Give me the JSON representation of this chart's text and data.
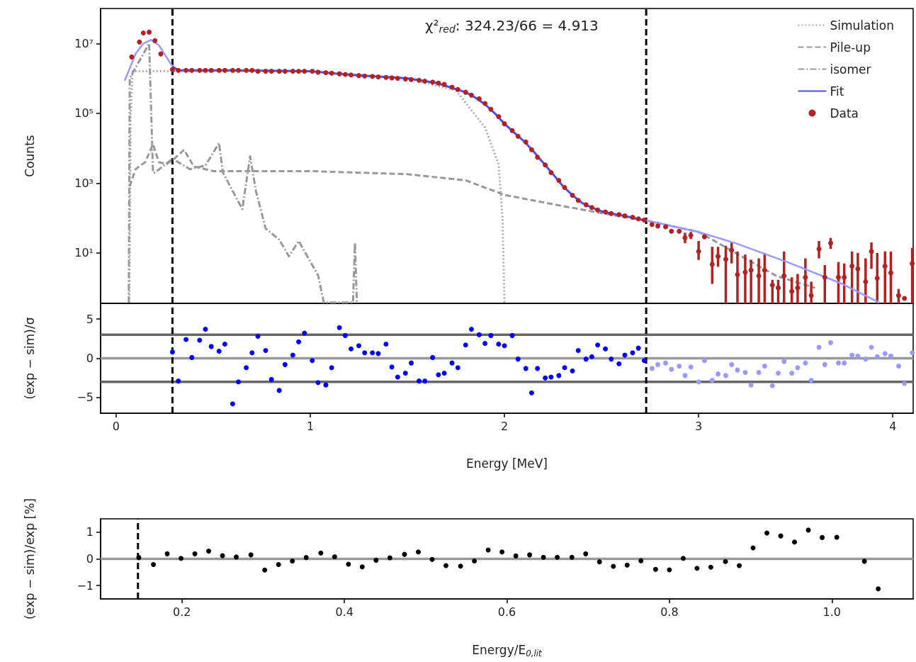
{
  "chart_data": [
    {
      "type": "line",
      "ylabel": "Counts",
      "xlim": [
        -0.08,
        4.105
      ],
      "xticks": [
        0,
        1,
        2,
        3,
        4
      ],
      "ylim": [
        0.36,
        100000000
      ],
      "yticks": [
        {
          "value": 10,
          "label": "10¹"
        },
        {
          "value": 1000,
          "label": "10³"
        },
        {
          "value": 100000,
          "label": "10⁵"
        },
        {
          "value": 10000000,
          "label": "10⁷"
        }
      ],
      "log": "y",
      "tick_labels": "y",
      "grid": false,
      "legend": "top right",
      "annotations": [
        "χ²$_{red}$: 324.23/66 = 4.913"
      ],
      "ref_lines": [
        {
          "axis": "x",
          "value": 0.29,
          "color": "#000000",
          "line_style": "dashed"
        },
        {
          "axis": "x",
          "value": 2.73,
          "color": "#000000",
          "line_style": "dashed"
        }
      ],
      "series": [
        {
          "name": "Simulation",
          "color": "#aaaaaa",
          "line_style": "dotted",
          "marker": "none",
          "x": [
            0.068,
            0.075,
            0.085,
            0.29,
            1.0,
            1.5,
            1.75,
            1.8,
            1.9,
            1.97,
            1.99,
            2.0
          ],
          "values": [
            0.38,
            100000,
            1600000,
            1600000,
            1600000,
            1000000,
            450000,
            200000,
            39000,
            3400,
            100,
            0.38
          ]
        },
        {
          "name": "Pile-up",
          "color": "#999999",
          "line_style": "dashed",
          "marker": "none",
          "x": [
            0.07,
            0.1,
            0.15,
            0.19,
            0.22,
            0.26,
            0.3,
            0.35,
            0.4,
            0.5,
            1.0,
            1.5,
            1.8,
            2.0,
            2.3,
            2.6,
            2.73,
            3.0,
            3.19,
            3.4,
            3.6
          ],
          "values": [
            800,
            2500,
            4000,
            13000,
            4000,
            3500,
            5000,
            9000,
            3000,
            2200,
            2200,
            1800,
            1200,
            460,
            220,
            110,
            85,
            40,
            10,
            2.2,
            1
          ]
        },
        {
          "name": "isomer",
          "color": "#999999",
          "line_style": "dashdot",
          "marker": "none",
          "x": [
            0.065,
            0.07,
            0.17,
            0.19,
            0.2,
            0.29,
            0.38,
            0.46,
            0.53,
            0.55,
            0.65,
            0.69,
            0.72,
            0.77,
            0.84,
            0.89,
            0.94,
            1.04,
            1.07,
            1.22,
            1.23,
            1.24
          ],
          "values": [
            0.38,
            1000000,
            10000000,
            2000,
            2000,
            5000,
            2500,
            3200,
            14000,
            2000,
            180,
            5900,
            600,
            50,
            24,
            8,
            22,
            2.3,
            0.38,
            0.38,
            20,
            0.38
          ]
        },
        {
          "color": "#9999ff",
          "line_style": "solid",
          "marker": "none",
          "x": [
            0.044,
            0.1,
            0.14,
            0.18,
            0.22,
            0.26,
            0.29
          ],
          "values": [
            850000,
            5000000,
            10000000,
            12600000,
            8900000,
            4000000,
            2200000
          ]
        },
        {
          "name": "Fit",
          "color": "#4b4bff",
          "line_style": "solid",
          "marker": "none",
          "x": [
            0.29,
            0.32,
            0.6,
            1.0,
            1.2,
            1.5,
            1.65,
            1.8,
            1.85,
            1.9,
            1.95,
            2.0,
            2.05,
            2.1,
            2.15,
            2.2,
            2.25,
            2.3,
            2.35,
            2.4,
            2.45,
            2.5,
            2.55,
            2.6,
            2.65,
            2.7,
            2.73
          ],
          "values": [
            2200000,
            1700000,
            1700000,
            1600000,
            1260000,
            1000000,
            740000,
            400000,
            280000,
            180000,
            100000,
            50000,
            28000,
            16000,
            8000,
            3800,
            1800,
            830,
            450,
            270,
            200,
            155,
            135,
            120,
            105,
            91,
            85
          ]
        },
        {
          "color": "#9999ff",
          "line_style": "solid",
          "marker": "none",
          "x": [
            2.73,
            3.0,
            3.19,
            3.46,
            3.74,
            3.93
          ],
          "values": [
            85,
            40,
            19,
            5.4,
            1.3,
            0.38
          ]
        },
        {
          "type": "scatter",
          "name": "Data",
          "color": "#b22222",
          "marker": "circle",
          "x": [
            0.08,
            0.12,
            0.14,
            0.17,
            0.2,
            0.23,
            0.29,
            0.32,
            0.36,
            0.39,
            0.43,
            0.46,
            0.49,
            0.53,
            0.56,
            0.6,
            0.63,
            0.67,
            0.7,
            0.73,
            0.77,
            0.8,
            0.84,
            0.87,
            0.91,
            0.94,
            0.97,
            1.01,
            1.04,
            1.08,
            1.11,
            1.15,
            1.18,
            1.21,
            1.25,
            1.28,
            1.32,
            1.35,
            1.39,
            1.42,
            1.45,
            1.49,
            1.52,
            1.56,
            1.59,
            1.63,
            1.66,
            1.69,
            1.73,
            1.76,
            1.8,
            1.83,
            1.87,
            1.9,
            1.93,
            1.97,
            2.0,
            2.04,
            2.07,
            2.11,
            2.14,
            2.17,
            2.21,
            2.24,
            2.28,
            2.31,
            2.35,
            2.38,
            2.42,
            2.45,
            2.48,
            2.52,
            2.55,
            2.59,
            2.62,
            2.66,
            2.69,
            2.72,
            2.76,
            2.79,
            2.83,
            2.86,
            2.9,
            2.93,
            2.96,
            3.0,
            3.03,
            3.07,
            3.1,
            3.14,
            3.17,
            3.2,
            3.24,
            3.27,
            3.31,
            3.34,
            3.38,
            3.41,
            3.44,
            3.48,
            3.51,
            3.55,
            3.58,
            3.62,
            3.65,
            3.68,
            3.72,
            3.75,
            3.79,
            3.82,
            3.86,
            3.89,
            3.92,
            3.96,
            3.99,
            4.03,
            4.06,
            4.1
          ],
          "values": [
            4100000,
            11000000,
            20000000,
            21000000,
            12000000,
            5000000,
            1800000,
            1700000,
            1700000,
            1700000,
            1700000,
            1700000,
            1700000,
            1700000,
            1700000,
            1700000,
            1700000,
            1700000,
            1700000,
            1600000,
            1600000,
            1600000,
            1600000,
            1600000,
            1600000,
            1600000,
            1600000,
            1600000,
            1500000,
            1450000,
            1400000,
            1350000,
            1300000,
            1250000,
            1200000,
            1170000,
            1140000,
            1100000,
            1060000,
            1030000,
            1000000,
            960000,
            920000,
            880000,
            830000,
            780000,
            730000,
            670000,
            560000,
            480000,
            400000,
            330000,
            260000,
            190000,
            130000,
            80000,
            50000,
            32000,
            22000,
            15000,
            9000,
            5500,
            3300,
            2000,
            1200,
            750,
            450,
            320,
            240,
            200,
            170,
            150,
            135,
            125,
            115,
            105,
            95,
            87,
            65,
            59,
            56,
            42,
            42,
            27,
            32,
            11,
            29,
            4.7,
            8,
            6.6,
            12,
            2.4,
            2.8,
            3.2,
            2.2,
            3.2,
            1.2,
            1.0,
            2.2,
            0.8,
            1.0,
            2.0,
            0.6,
            13,
            2.0,
            19,
            2.0,
            2.0,
            4.2,
            3.5,
            1.5,
            11,
            1.9,
            4.2,
            2.7,
            0.6,
            0.5,
            5
          ],
          "errors": [
            null,
            null,
            null,
            null,
            null,
            null,
            null,
            null,
            null,
            null,
            null,
            null,
            null,
            null,
            null,
            null,
            null,
            null,
            null,
            null,
            null,
            null,
            null,
            null,
            null,
            null,
            null,
            null,
            null,
            null,
            null,
            null,
            null,
            null,
            null,
            null,
            null,
            null,
            null,
            null,
            null,
            null,
            null,
            null,
            null,
            null,
            null,
            null,
            null,
            null,
            null,
            null,
            null,
            null,
            null,
            null,
            null,
            null,
            null,
            null,
            null,
            null,
            null,
            null,
            null,
            null,
            null,
            null,
            null,
            null,
            null,
            null,
            null,
            null,
            null,
            null,
            null,
            null,
            null,
            null,
            null,
            null,
            null,
            [
              19,
              38
            ],
            [
              25,
              40
            ],
            [
              6.3,
              22
            ],
            [
              25,
              35
            ],
            [
              1.3,
              15
            ],
            [
              4,
              15
            ],
            [
              0.36,
              16
            ],
            [
              5,
              21
            ],
            [
              0.36,
              11
            ],
            [
              0.36,
              9
            ],
            [
              0.36,
              6.4
            ],
            [
              0.36,
              7
            ],
            [
              0.36,
              10
            ],
            [
              0.36,
              1.7
            ],
            [
              0.36,
              1.7
            ],
            [
              0.36,
              11
            ],
            [
              0.36,
              2
            ],
            [
              0.36,
              2.5
            ],
            [
              0.36,
              7
            ],
            [
              0.36,
              1.5
            ],
            [
              7,
              22
            ],
            [
              0.36,
              4.5
            ],
            [
              13,
              27
            ],
            [
              0.36,
              5.5
            ],
            [
              0.36,
              5
            ],
            [
              0.36,
              11
            ],
            [
              0.36,
              10
            ],
            [
              0.36,
              7
            ],
            [
              3.5,
              20
            ],
            [
              0.36,
              10
            ],
            [
              0.36,
              11
            ],
            [
              0.36,
              11
            ],
            [
              0.36,
              0.93
            ],
            null,
            [
              0.36,
              14
            ]
          ]
        }
      ]
    },
    {
      "type": "scatter",
      "xlabel": "Energy [MeV]",
      "ylabel": "(exp − sim)/σ",
      "xlim": [
        -0.08,
        4.105
      ],
      "xticks": [
        0,
        1,
        2,
        3,
        4
      ],
      "ylim": [
        -7,
        7
      ],
      "yticks": [
        {
          "value": -5,
          "label": "−5"
        },
        0,
        5
      ],
      "grid": false,
      "legend": false,
      "marker": "circle",
      "ref_lines": [
        {
          "axis": "y",
          "value": 3,
          "color": "#666666",
          "line_style": "solid"
        },
        {
          "axis": "y",
          "value": 0,
          "color": "#999999",
          "line_style": "solid"
        },
        {
          "axis": "y",
          "value": -3,
          "color": "#666666",
          "line_style": "solid"
        },
        {
          "axis": "x",
          "value": 0.29,
          "color": "#000000",
          "line_style": "dashed"
        },
        {
          "axis": "x",
          "value": 2.73,
          "color": "#000000",
          "line_style": "dashed"
        }
      ],
      "series": [
        {
          "color": "#0000ff",
          "x": [
            0.29,
            0.32,
            0.36,
            0.39,
            0.43,
            0.46,
            0.49,
            0.53,
            0.56,
            0.6,
            0.63,
            0.67,
            0.7,
            0.73,
            0.77,
            0.8,
            0.84,
            0.87,
            0.91,
            0.94,
            0.97,
            1.01,
            1.04,
            1.08,
            1.11,
            1.15,
            1.18,
            1.21,
            1.25,
            1.28,
            1.32,
            1.35,
            1.39,
            1.42,
            1.45,
            1.49,
            1.52,
            1.56,
            1.59,
            1.63,
            1.66,
            1.69,
            1.73,
            1.76,
            1.8,
            1.83,
            1.87,
            1.9,
            1.93,
            1.97,
            2.0,
            2.04,
            2.07,
            2.11,
            2.14,
            2.17,
            2.21,
            2.24,
            2.28,
            2.31,
            2.35,
            2.38,
            2.42,
            2.45,
            2.48,
            2.52,
            2.55,
            2.59,
            2.62,
            2.66,
            2.69,
            2.72
          ],
          "values": [
            0.8,
            -2.9,
            2.4,
            0.1,
            2.3,
            3.7,
            1.5,
            0.9,
            1.8,
            -5.8,
            -3.0,
            -1.2,
            0.7,
            2.8,
            1.0,
            -2.7,
            -4.1,
            -0.8,
            0.4,
            2.1,
            3.2,
            -0.3,
            -3.1,
            -3.4,
            -1.2,
            3.9,
            2.9,
            1.2,
            1.6,
            0.7,
            0.7,
            0.6,
            1.8,
            -1.1,
            -2.4,
            -1.9,
            -0.6,
            -2.9,
            -2.9,
            0.1,
            -2.1,
            -1.9,
            -0.6,
            -1.2,
            1.7,
            3.7,
            3.0,
            1.9,
            2.9,
            1.8,
            1.6,
            2.9,
            -0.1,
            -1.3,
            -4.4,
            -1.3,
            -2.5,
            -2.4,
            -2.2,
            -1.2,
            -1.6,
            1.0,
            -0.1,
            0.2,
            1.7,
            1.2,
            -0.1,
            -0.7,
            0.4,
            0.7,
            1.3,
            -0.3
          ]
        },
        {
          "color": "#9999ff",
          "x": [
            2.76,
            2.79,
            2.83,
            2.86,
            2.9,
            2.93,
            2.96,
            3.0,
            3.03,
            3.07,
            3.1,
            3.14,
            3.17,
            3.2,
            3.24,
            3.27,
            3.31,
            3.34,
            3.38,
            3.41,
            3.44,
            3.48,
            3.51,
            3.55,
            3.58,
            3.62,
            3.65,
            3.68,
            3.72,
            3.75,
            3.79,
            3.82,
            3.86,
            3.89,
            3.92,
            3.96,
            3.99,
            4.03,
            4.06,
            4.1
          ],
          "values": [
            -1.3,
            -0.8,
            -0.6,
            -1.4,
            -1.0,
            -2.2,
            -1.1,
            -3.0,
            -0.3,
            -2.8,
            -2.0,
            -2.2,
            -0.8,
            -1.5,
            -1.8,
            -3.4,
            -1.8,
            -1.0,
            -3.5,
            -1.9,
            -0.4,
            -1.9,
            -1.2,
            -0.6,
            -2.8,
            1.4,
            -0.8,
            2.0,
            -0.6,
            -0.6,
            0.4,
            0.3,
            -0.1,
            1.4,
            0.2,
            0.6,
            0.3,
            -1.0,
            -3.2,
            0.7
          ]
        }
      ]
    },
    {
      "type": "scatter",
      "xlabel": "Energy/E$_{0,lit}$",
      "ylabel": "(exp − sim)/exp [%]",
      "xlim": [
        0.1,
        1.1
      ],
      "xticks": [
        0.2,
        0.4,
        0.6,
        0.8,
        {
          "value": 1,
          "label": "1.0"
        }
      ],
      "ylim": [
        -1.5,
        1.5
      ],
      "yticks": [
        {
          "value": -1,
          "label": "−1"
        },
        0,
        1
      ],
      "grid": false,
      "legend": false,
      "marker": "circle",
      "ref_lines": [
        {
          "axis": "y",
          "value": 0,
          "color": "#999999",
          "line_style": "solid"
        },
        {
          "axis": "x",
          "value": 0.146,
          "color": "#000000",
          "line_style": "dashed"
        }
      ],
      "series": [
        {
          "color": "#000000",
          "x": [
            0.147,
            0.165,
            0.182,
            0.199,
            0.216,
            0.233,
            0.25,
            0.267,
            0.285,
            0.302,
            0.319,
            0.336,
            0.353,
            0.371,
            0.388,
            0.405,
            0.422,
            0.439,
            0.456,
            0.474,
            0.491,
            0.508,
            0.525,
            0.543,
            0.56,
            0.577,
            0.594,
            0.611,
            0.628,
            0.645,
            0.662,
            0.68,
            0.697,
            0.714,
            0.731,
            0.748,
            0.765,
            0.783,
            0.8,
            0.817,
            0.834,
            0.851,
            0.869,
            0.886,
            0.903,
            0.92,
            0.937,
            0.954,
            0.971,
            0.988,
            1.006,
            1.04,
            1.057
          ],
          "values": [
            0.05,
            -0.21,
            0.19,
            0.02,
            0.19,
            0.29,
            0.12,
            0.07,
            0.15,
            -0.42,
            -0.21,
            -0.08,
            0.05,
            0.22,
            0.08,
            -0.2,
            -0.3,
            -0.05,
            0.04,
            0.17,
            0.26,
            -0.02,
            -0.25,
            -0.27,
            -0.08,
            0.33,
            0.26,
            0.11,
            0.15,
            0.06,
            0.06,
            0.06,
            0.19,
            -0.11,
            -0.28,
            -0.23,
            -0.07,
            -0.39,
            -0.41,
            0.02,
            -0.35,
            -0.31,
            -0.1,
            -0.25,
            0.41,
            0.97,
            0.86,
            0.63,
            1.08,
            0.8,
            0.81,
            -0.09,
            -1.12
          ]
        }
      ]
    }
  ]
}
